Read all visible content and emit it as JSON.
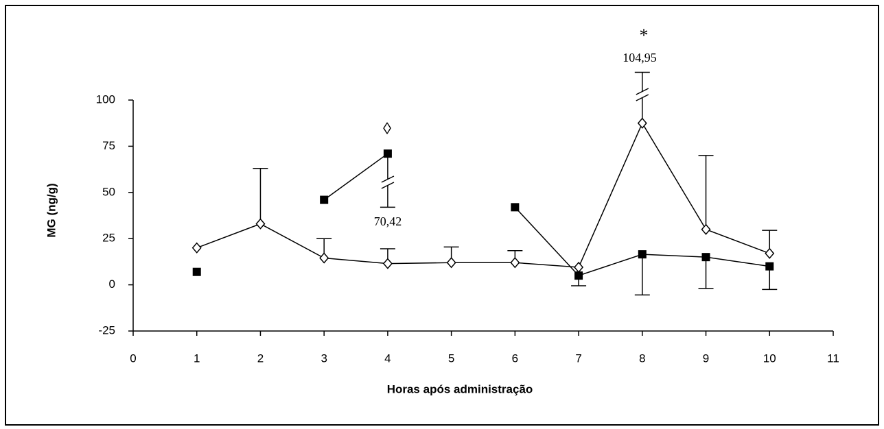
{
  "chart_data": {
    "type": "line",
    "x_label": "Horas após administração",
    "y_label": "MG (ng/g)",
    "x": [
      1,
      2,
      3,
      4,
      5,
      6,
      7,
      8,
      9,
      10
    ],
    "xlim": [
      0,
      11
    ],
    "xticks": [
      0,
      1,
      2,
      3,
      4,
      5,
      6,
      7,
      8,
      9,
      10,
      11
    ],
    "ylim": [
      -25,
      100
    ],
    "yticks": [
      -25,
      0,
      25,
      50,
      75,
      100
    ],
    "series": [
      {
        "color": "#000000",
        "marker": "diamond",
        "error_direction": "up",
        "values": [
          20,
          33,
          14.5,
          11.5,
          12,
          12,
          9.5,
          87.5,
          30,
          17
        ],
        "errors": [
          null,
          30,
          10.5,
          8,
          8.5,
          6.5,
          null,
          27.5,
          40,
          12.5
        ]
      },
      {
        "color": "#000000",
        "marker": "square",
        "error_direction": "down",
        "values": [
          7,
          null,
          46,
          71,
          null,
          42,
          5,
          16.5,
          15,
          10
        ],
        "errors": [
          null,
          null,
          null,
          29,
          null,
          null,
          5.5,
          22,
          17,
          12.5
        ]
      }
    ],
    "annotations": [
      "◊",
      "70,42",
      "*",
      "104,95"
    ]
  }
}
